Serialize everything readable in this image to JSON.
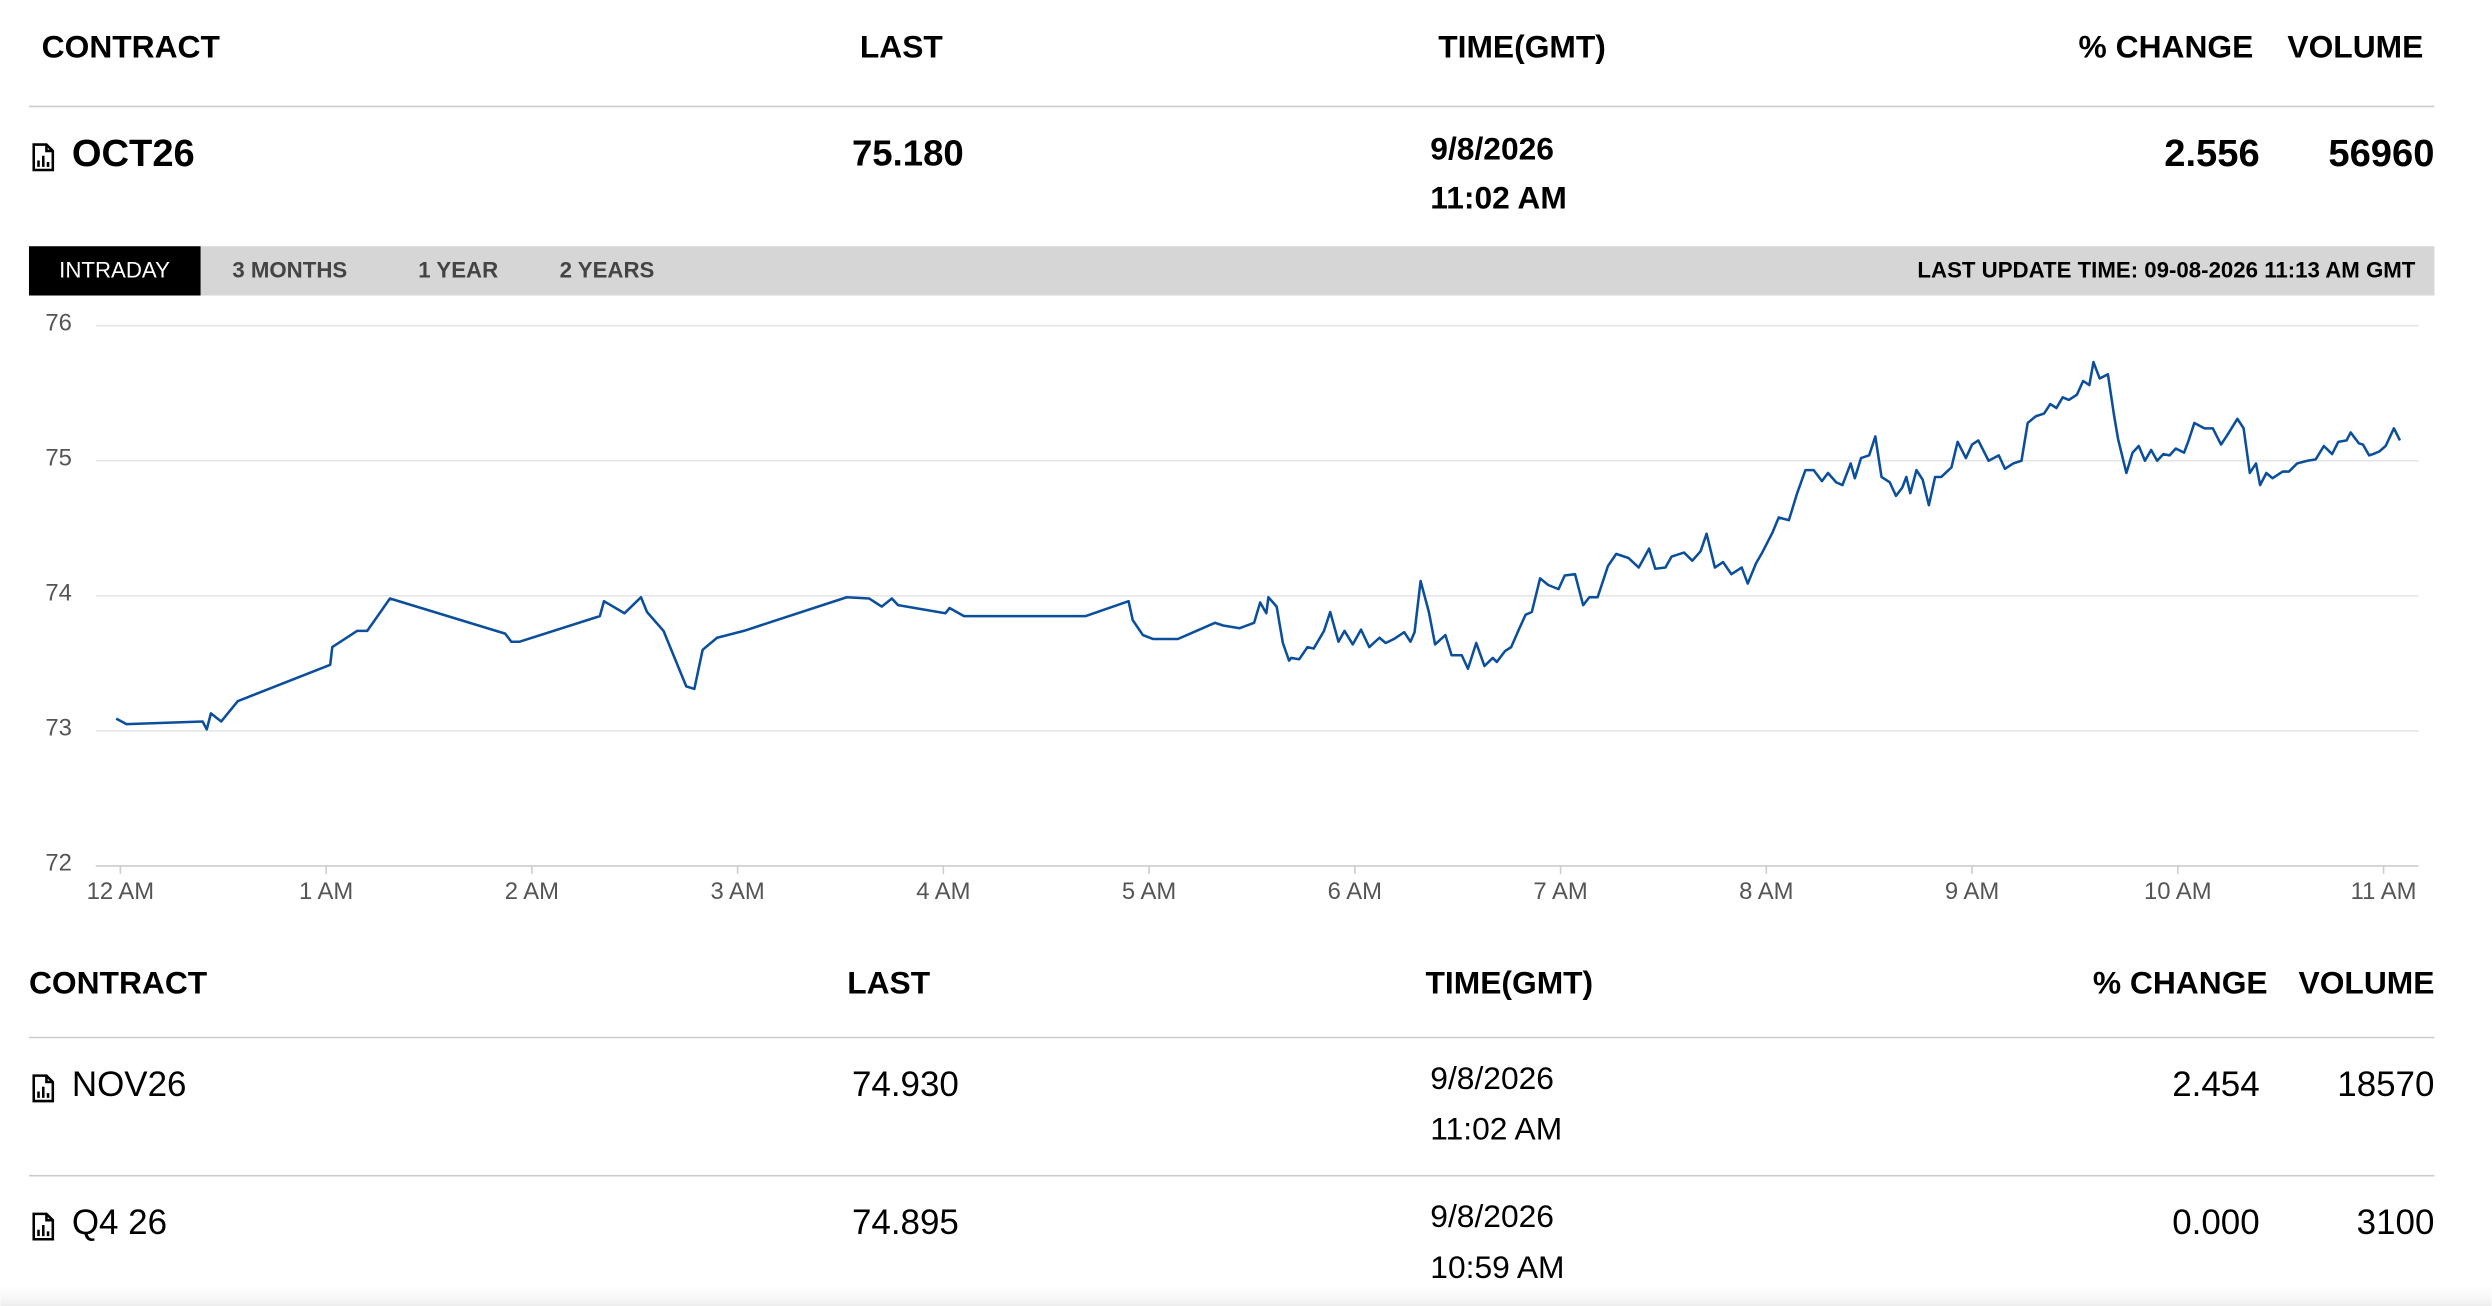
{
  "header": [
    "CONTRACT",
    "LAST",
    "TIME(GMT)",
    "% CHANGE",
    "VOLUME"
  ],
  "main_row": {
    "contract": "OCT26",
    "last": "75.180",
    "date": "9/8/2026",
    "time": "11:02 AM",
    "change": "2.556",
    "volume": "56960"
  },
  "tabs": [
    "INTRADAY",
    "3 MONTHS",
    "1 YEAR",
    "2 YEARS"
  ],
  "last_update": "LAST UPDATE TIME: 09-08-2026 11:13 AM GMT",
  "chart_data": {
    "type": "line",
    "color": "#0b4f9c",
    "grid": true,
    "xlim": [
      -0.12,
      11.17
    ],
    "ylim": [
      72,
      76
    ],
    "xticks": [
      {
        "value": 0,
        "label": "12 AM"
      },
      {
        "value": 1,
        "label": "1 AM"
      },
      {
        "value": 2,
        "label": "2 AM"
      },
      {
        "value": 3,
        "label": "3 AM"
      },
      {
        "value": 4,
        "label": "4 AM"
      },
      {
        "value": 5,
        "label": "5 AM"
      },
      {
        "value": 6,
        "label": "6 AM"
      },
      {
        "value": 7,
        "label": "7 AM"
      },
      {
        "value": 8,
        "label": "8 AM"
      },
      {
        "value": 9,
        "label": "9 AM"
      },
      {
        "value": 10,
        "label": "10 AM"
      },
      {
        "value": 11,
        "label": "11 AM"
      }
    ],
    "yticks": [
      72,
      73,
      74,
      75,
      76
    ],
    "x": [
      -0.02,
      0.03,
      0.4,
      0.42,
      0.44,
      0.49,
      0.57,
      1.02,
      1.03,
      1.15,
      1.2,
      1.31,
      1.87,
      1.9,
      1.94,
      2.33,
      2.35,
      2.45,
      2.53,
      2.56,
      2.64,
      2.75,
      2.79,
      2.83,
      2.9,
      3.03,
      3.53,
      3.64,
      3.7,
      3.75,
      3.78,
      4.01,
      4.03,
      4.1,
      4.69,
      4.9,
      4.92,
      4.97,
      5.02,
      5.14,
      5.32,
      5.36,
      5.44,
      5.51,
      5.54,
      5.57,
      5.58,
      5.62,
      5.65,
      5.68,
      5.69,
      5.73,
      5.77,
      5.8,
      5.85,
      5.88,
      5.92,
      5.95,
      5.99,
      6.03,
      6.07,
      6.12,
      6.15,
      6.19,
      6.24,
      6.27,
      6.29,
      6.32,
      6.36,
      6.39,
      6.44,
      6.47,
      6.52,
      6.55,
      6.59,
      6.63,
      6.67,
      6.69,
      6.73,
      6.76,
      6.8,
      6.83,
      6.86,
      6.9,
      6.94,
      6.99,
      7.02,
      7.07,
      7.11,
      7.14,
      7.18,
      7.23,
      7.27,
      7.33,
      7.38,
      7.43,
      7.46,
      7.51,
      7.54,
      7.6,
      7.64,
      7.68,
      7.71,
      7.75,
      7.79,
      7.83,
      7.88,
      7.91,
      7.95,
      7.98,
      8.03,
      8.06,
      8.11,
      8.15,
      8.19,
      8.23,
      8.27,
      8.3,
      8.34,
      8.37,
      8.41,
      8.43,
      8.46,
      8.5,
      8.53,
      8.56,
      8.6,
      8.63,
      8.66,
      8.68,
      8.7,
      8.73,
      8.76,
      8.79,
      8.82,
      8.85,
      8.9,
      8.93,
      8.97,
      9.0,
      9.03,
      9.08,
      9.13,
      9.16,
      9.2,
      9.24,
      9.27,
      9.31,
      9.35,
      9.38,
      9.41,
      9.44,
      9.47,
      9.51,
      9.54,
      9.57,
      9.59,
      9.62,
      9.66,
      9.69,
      9.71,
      9.75,
      9.78,
      9.81,
      9.84,
      9.87,
      9.9,
      9.93,
      9.96,
      9.99,
      10.03,
      10.05,
      10.08,
      10.13,
      10.17,
      10.21,
      10.24,
      10.29,
      10.32,
      10.35,
      10.38,
      10.4,
      10.43,
      10.46,
      10.51,
      10.54,
      10.58,
      10.63,
      10.67,
      10.71,
      10.75,
      10.78,
      10.82,
      10.84,
      10.88,
      10.9,
      10.93,
      10.95,
      10.98,
      11.01,
      11.05,
      11.08
    ],
    "values": [
      73.09,
      73.05,
      73.07,
      73.01,
      73.13,
      73.07,
      73.22,
      73.49,
      73.62,
      73.74,
      73.74,
      73.98,
      73.72,
      73.66,
      73.66,
      73.85,
      73.96,
      73.87,
      73.99,
      73.88,
      73.74,
      73.33,
      73.31,
      73.6,
      73.69,
      73.74,
      73.99,
      73.98,
      73.92,
      73.98,
      73.93,
      73.87,
      73.91,
      73.85,
      73.85,
      73.96,
      73.82,
      73.71,
      73.68,
      73.68,
      73.8,
      73.78,
      73.76,
      73.8,
      73.95,
      73.87,
      73.99,
      73.92,
      73.65,
      73.52,
      73.54,
      73.53,
      73.62,
      73.61,
      73.74,
      73.88,
      73.66,
      73.74,
      73.64,
      73.75,
      73.62,
      73.69,
      73.65,
      73.68,
      73.73,
      73.66,
      73.73,
      74.11,
      73.88,
      73.64,
      73.71,
      73.56,
      73.56,
      73.46,
      73.65,
      73.48,
      73.54,
      73.51,
      73.59,
      73.62,
      73.76,
      73.86,
      73.88,
      74.13,
      74.08,
      74.05,
      74.15,
      74.16,
      73.93,
      73.99,
      73.99,
      74.22,
      74.31,
      74.28,
      74.21,
      74.35,
      74.2,
      74.21,
      74.29,
      74.32,
      74.26,
      74.33,
      74.46,
      74.21,
      74.25,
      74.16,
      74.21,
      74.09,
      74.24,
      74.32,
      74.47,
      74.58,
      74.56,
      74.76,
      74.93,
      74.93,
      74.85,
      74.91,
      74.84,
      74.82,
      74.98,
      74.87,
      75.02,
      75.04,
      75.18,
      74.88,
      74.84,
      74.74,
      74.8,
      74.88,
      74.76,
      74.93,
      74.86,
      74.67,
      74.88,
      74.88,
      74.95,
      75.14,
      75.02,
      75.12,
      75.15,
      75.0,
      75.04,
      74.94,
      74.98,
      75.0,
      75.28,
      75.33,
      75.35,
      75.42,
      75.39,
      75.47,
      75.45,
      75.49,
      75.59,
      75.56,
      75.73,
      75.61,
      75.64,
      75.34,
      75.16,
      74.91,
      75.06,
      75.11,
      75.0,
      75.08,
      75.0,
      75.05,
      75.04,
      75.09,
      75.06,
      75.14,
      75.28,
      75.24,
      75.24,
      75.12,
      75.19,
      75.31,
      75.24,
      74.91,
      74.98,
      74.82,
      74.91,
      74.87,
      74.92,
      74.92,
      74.98,
      75.0,
      75.01,
      75.11,
      75.05,
      75.14,
      75.15,
      75.21,
      75.13,
      75.12,
      75.04,
      75.05,
      75.07,
      75.11,
      75.24,
      75.15
    ]
  },
  "table": {
    "header": [
      "CONTRACT",
      "LAST",
      "TIME(GMT)",
      "% CHANGE",
      "VOLUME"
    ],
    "rows": [
      {
        "contract": "NOV26",
        "last": "74.930",
        "date": "9/8/2026",
        "time": "11:02 AM",
        "change": "2.454",
        "volume": "18570"
      },
      {
        "contract": "Q4 26",
        "last": "74.895",
        "date": "9/8/2026",
        "time": "10:59 AM",
        "change": "0.000",
        "volume": "3100"
      }
    ]
  }
}
